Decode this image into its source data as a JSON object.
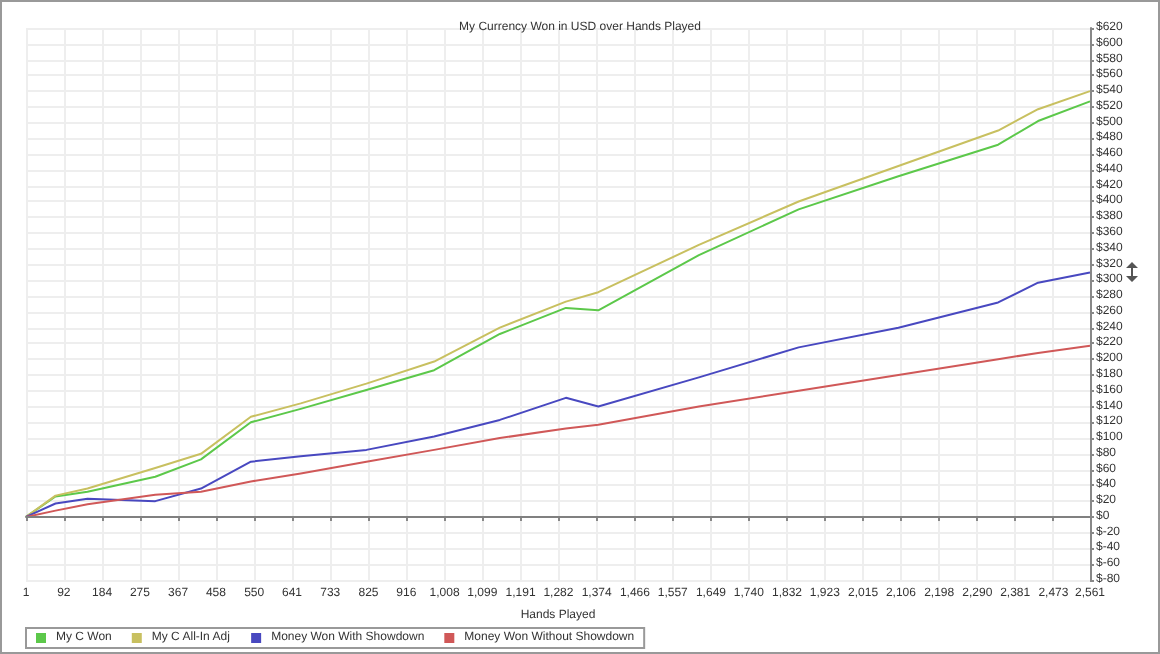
{
  "chart_data": {
    "type": "line",
    "title": "My Currency Won in USD over Hands Played",
    "xlabel": "Hands Played",
    "x": [
      1,
      72,
      149,
      312,
      422,
      542,
      662,
      820,
      983,
      1141,
      1300,
      1378,
      1620,
      1860,
      2100,
      2340,
      2436,
      2561
    ],
    "series": [
      {
        "name": "My C Won",
        "color": "#5cc84a",
        "values": [
          0,
          26,
          32,
          51,
          73,
          120,
          137,
          161,
          186,
          232,
          265,
          262,
          332,
          390,
          432,
          472,
          502,
          527
        ]
      },
      {
        "name": "My C All-In Adj",
        "color": "#c8c060",
        "values": [
          0,
          27,
          36,
          62,
          80,
          127,
          144,
          169,
          197,
          240,
          273,
          285,
          345,
          400,
          445,
          490,
          517,
          540
        ]
      },
      {
        "name": "Money Won With Showdown",
        "color": "#4848c0",
        "values": [
          0,
          17,
          23,
          20,
          36,
          70,
          77,
          85,
          102,
          123,
          151,
          140,
          177,
          215,
          240,
          272,
          297,
          310
        ]
      },
      {
        "name": "Money Won Without Showdown",
        "color": "#d05858",
        "values": [
          0,
          8,
          16,
          28,
          32,
          45,
          55,
          70,
          85,
          100,
          112,
          117,
          140,
          160,
          180,
          200,
          208,
          217
        ]
      }
    ],
    "xlim": [
      1,
      2561
    ],
    "xticks": [
      1,
      {
        "value": 92,
        "label": "92"
      },
      184,
      275,
      367,
      458,
      550,
      641,
      733,
      825,
      916,
      {
        "value": 1008,
        "label": "1,008"
      },
      {
        "value": 1099,
        "label": "1,099"
      },
      {
        "value": 1191,
        "label": "1,191"
      },
      {
        "value": 1282,
        "label": "1,282"
      },
      {
        "value": 1374,
        "label": "1,374"
      },
      {
        "value": 1466,
        "label": "1,466"
      },
      {
        "value": 1557,
        "label": "1,557"
      },
      {
        "value": 1649,
        "label": "1,649"
      },
      {
        "value": 1740,
        "label": "1,740"
      },
      {
        "value": 1832,
        "label": "1,832"
      },
      {
        "value": 1923,
        "label": "1,923"
      },
      {
        "value": 2015,
        "label": "2,015"
      },
      {
        "value": 2106,
        "label": "2,106"
      },
      {
        "value": 2198,
        "label": "2,198"
      },
      {
        "value": 2290,
        "label": "2,290"
      },
      {
        "value": 2381,
        "label": "2,381"
      },
      {
        "value": 2473,
        "label": "2,473"
      },
      {
        "value": 2561,
        "label": "2,561"
      }
    ],
    "ylim": [
      -80,
      620
    ],
    "yticks": [
      {
        "value": -80,
        "label": "$-80"
      },
      {
        "value": -60,
        "label": "$-60"
      },
      {
        "value": -40,
        "label": "$-40"
      },
      {
        "value": -20,
        "label": "$-20"
      },
      {
        "value": 0,
        "label": "$0"
      },
      {
        "value": 20,
        "label": "$20"
      },
      {
        "value": 40,
        "label": "$40"
      },
      {
        "value": 60,
        "label": "$60"
      },
      {
        "value": 80,
        "label": "$80"
      },
      {
        "value": 100,
        "label": "$100"
      },
      {
        "value": 120,
        "label": "$120"
      },
      {
        "value": 140,
        "label": "$140"
      },
      {
        "value": 160,
        "label": "$160"
      },
      {
        "value": 180,
        "label": "$180"
      },
      {
        "value": 200,
        "label": "$200"
      },
      {
        "value": 220,
        "label": "$220"
      },
      {
        "value": 240,
        "label": "$240"
      },
      {
        "value": 260,
        "label": "$260"
      },
      {
        "value": 280,
        "label": "$280"
      },
      {
        "value": 300,
        "label": "$300"
      },
      {
        "value": 320,
        "label": "$320"
      },
      {
        "value": 340,
        "label": "$340"
      },
      {
        "value": 360,
        "label": "$360"
      },
      {
        "value": 380,
        "label": "$380"
      },
      {
        "value": 400,
        "label": "$400"
      },
      {
        "value": 420,
        "label": "$420"
      },
      {
        "value": 440,
        "label": "$440"
      },
      {
        "value": 460,
        "label": "$460"
      },
      {
        "value": 480,
        "label": "$480"
      },
      {
        "value": 500,
        "label": "$500"
      },
      {
        "value": 520,
        "label": "$520"
      },
      {
        "value": 540,
        "label": "$540"
      },
      {
        "value": 560,
        "label": "$560"
      },
      {
        "value": 580,
        "label": "$580"
      },
      {
        "value": 600,
        "label": "$600"
      },
      {
        "value": 620,
        "label": "$620"
      }
    ],
    "ref_lines": [
      {
        "axis": "y",
        "value": 0,
        "color": "#808080"
      }
    ],
    "grid": true,
    "legend": "bottom left",
    "marker": "none",
    "line_style": "solid"
  }
}
